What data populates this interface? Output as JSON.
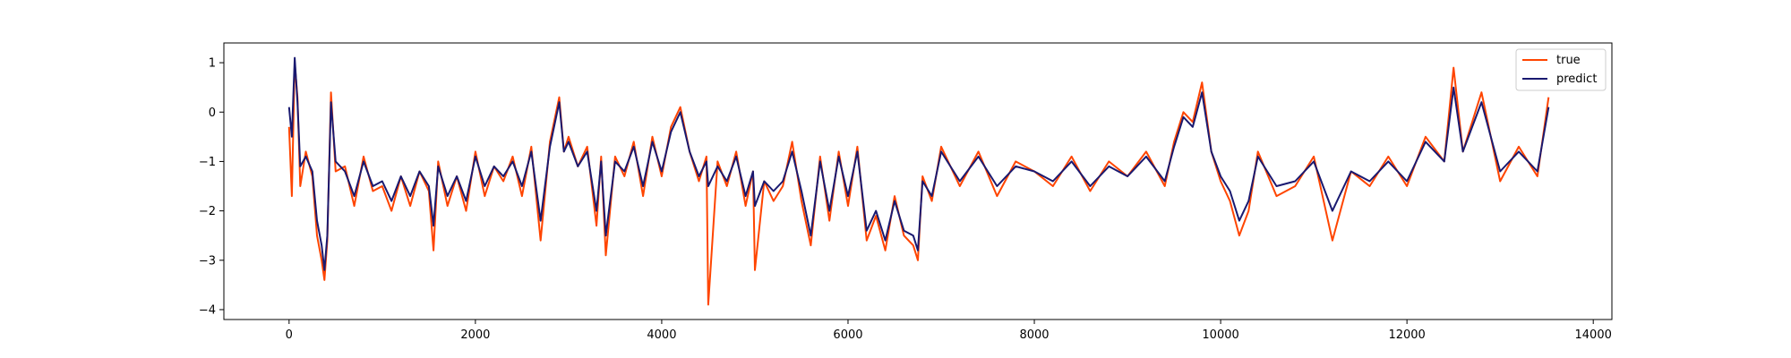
{
  "chart_data": {
    "type": "line",
    "title": "",
    "xlabel": "",
    "ylabel": "",
    "xlim": [
      -700,
      14200
    ],
    "ylim": [
      -4.2,
      1.4
    ],
    "xticks": [
      0,
      2000,
      4000,
      6000,
      8000,
      10000,
      12000,
      14000
    ],
    "yticks": [
      1,
      0,
      -1,
      -2,
      -3,
      -4
    ],
    "grid": false,
    "legend_position": "top-right",
    "series": [
      {
        "name": "true",
        "color": "#ff4500",
        "x": [
          0,
          30,
          60,
          90,
          120,
          180,
          250,
          300,
          350,
          380,
          410,
          450,
          500,
          600,
          700,
          800,
          900,
          1000,
          1100,
          1200,
          1300,
          1400,
          1500,
          1550,
          1600,
          1700,
          1800,
          1900,
          2000,
          2100,
          2200,
          2300,
          2400,
          2500,
          2600,
          2700,
          2800,
          2900,
          2950,
          3000,
          3100,
          3200,
          3300,
          3350,
          3400,
          3500,
          3600,
          3700,
          3800,
          3900,
          4000,
          4100,
          4200,
          4300,
          4400,
          4480,
          4500,
          4600,
          4700,
          4800,
          4900,
          4980,
          5000,
          5100,
          5200,
          5300,
          5400,
          5500,
          5600,
          5700,
          5800,
          5900,
          6000,
          6100,
          6200,
          6300,
          6400,
          6500,
          6600,
          6700,
          6750,
          6800,
          6900,
          7000,
          7200,
          7400,
          7600,
          7800,
          8000,
          8200,
          8400,
          8600,
          8800,
          9000,
          9200,
          9400,
          9500,
          9600,
          9700,
          9800,
          9900,
          10000,
          10100,
          10200,
          10300,
          10400,
          10600,
          10800,
          11000,
          11200,
          11400,
          11600,
          11800,
          12000,
          12200,
          12400,
          12500,
          12600,
          12800,
          13000,
          13200,
          13400,
          13520
        ],
        "y": [
          -0.3,
          -1.7,
          1.0,
          0.3,
          -1.5,
          -0.8,
          -1.3,
          -2.5,
          -3.0,
          -3.4,
          -2.6,
          0.4,
          -1.2,
          -1.1,
          -1.9,
          -0.9,
          -1.6,
          -1.5,
          -2.0,
          -1.3,
          -1.9,
          -1.2,
          -1.6,
          -2.8,
          -1.0,
          -1.9,
          -1.3,
          -2.0,
          -0.8,
          -1.7,
          -1.1,
          -1.4,
          -0.9,
          -1.7,
          -0.7,
          -2.6,
          -0.6,
          0.3,
          -0.8,
          -0.5,
          -1.1,
          -0.7,
          -2.3,
          -0.9,
          -2.9,
          -0.9,
          -1.3,
          -0.6,
          -1.7,
          -0.5,
          -1.3,
          -0.3,
          0.1,
          -0.8,
          -1.4,
          -0.9,
          -3.9,
          -1.0,
          -1.5,
          -0.8,
          -1.9,
          -1.2,
          -3.2,
          -1.4,
          -1.8,
          -1.5,
          -0.6,
          -1.8,
          -2.7,
          -0.9,
          -2.2,
          -0.8,
          -1.9,
          -0.7,
          -2.6,
          -2.1,
          -2.8,
          -1.7,
          -2.5,
          -2.7,
          -3.0,
          -1.3,
          -1.8,
          -0.7,
          -1.5,
          -0.8,
          -1.7,
          -1.0,
          -1.2,
          -1.5,
          -0.9,
          -1.6,
          -1.0,
          -1.3,
          -0.8,
          -1.5,
          -0.6,
          0.0,
          -0.2,
          0.6,
          -0.8,
          -1.4,
          -1.8,
          -2.5,
          -2.0,
          -0.8,
          -1.7,
          -1.5,
          -0.9,
          -2.6,
          -1.2,
          -1.5,
          -0.9,
          -1.5,
          -0.5,
          -1.0,
          0.9,
          -0.8,
          0.4,
          -1.4,
          -0.7,
          -1.3,
          0.3
        ]
      },
      {
        "name": "predict",
        "color": "#191970",
        "x": [
          0,
          30,
          60,
          90,
          120,
          180,
          250,
          300,
          350,
          380,
          410,
          450,
          500,
          600,
          700,
          800,
          900,
          1000,
          1100,
          1200,
          1300,
          1400,
          1500,
          1550,
          1600,
          1700,
          1800,
          1900,
          2000,
          2100,
          2200,
          2300,
          2400,
          2500,
          2600,
          2700,
          2800,
          2900,
          2950,
          3000,
          3100,
          3200,
          3300,
          3350,
          3400,
          3500,
          3600,
          3700,
          3800,
          3900,
          4000,
          4100,
          4200,
          4300,
          4400,
          4480,
          4500,
          4600,
          4700,
          4800,
          4900,
          4980,
          5000,
          5100,
          5200,
          5300,
          5400,
          5500,
          5600,
          5700,
          5800,
          5900,
          6000,
          6100,
          6200,
          6300,
          6400,
          6500,
          6600,
          6700,
          6750,
          6800,
          6900,
          7000,
          7200,
          7400,
          7600,
          7800,
          8000,
          8200,
          8400,
          8600,
          8800,
          9000,
          9200,
          9400,
          9500,
          9600,
          9700,
          9800,
          9900,
          10000,
          10100,
          10200,
          10300,
          10400,
          10600,
          10800,
          11000,
          11200,
          11400,
          11600,
          11800,
          12000,
          12200,
          12400,
          12500,
          12600,
          12800,
          13000,
          13200,
          13400,
          13520
        ],
        "y": [
          0.1,
          -0.5,
          1.1,
          0.2,
          -1.1,
          -0.9,
          -1.2,
          -2.2,
          -2.7,
          -3.2,
          -2.5,
          0.2,
          -1.0,
          -1.2,
          -1.7,
          -1.0,
          -1.5,
          -1.4,
          -1.8,
          -1.3,
          -1.7,
          -1.2,
          -1.5,
          -2.3,
          -1.1,
          -1.7,
          -1.3,
          -1.8,
          -0.9,
          -1.5,
          -1.1,
          -1.3,
          -1.0,
          -1.5,
          -0.8,
          -2.2,
          -0.7,
          0.2,
          -0.8,
          -0.6,
          -1.1,
          -0.8,
          -2.0,
          -1.0,
          -2.5,
          -1.0,
          -1.2,
          -0.7,
          -1.5,
          -0.6,
          -1.2,
          -0.4,
          0.0,
          -0.8,
          -1.3,
          -1.0,
          -1.5,
          -1.1,
          -1.4,
          -0.9,
          -1.7,
          -1.2,
          -1.9,
          -1.4,
          -1.6,
          -1.4,
          -0.8,
          -1.6,
          -2.5,
          -1.0,
          -2.0,
          -0.9,
          -1.7,
          -0.8,
          -2.4,
          -2.0,
          -2.6,
          -1.8,
          -2.4,
          -2.5,
          -2.8,
          -1.4,
          -1.7,
          -0.8,
          -1.4,
          -0.9,
          -1.5,
          -1.1,
          -1.2,
          -1.4,
          -1.0,
          -1.5,
          -1.1,
          -1.3,
          -0.9,
          -1.4,
          -0.7,
          -0.1,
          -0.3,
          0.4,
          -0.8,
          -1.3,
          -1.6,
          -2.2,
          -1.8,
          -0.9,
          -1.5,
          -1.4,
          -1.0,
          -2.0,
          -1.2,
          -1.4,
          -1.0,
          -1.4,
          -0.6,
          -1.0,
          0.5,
          -0.8,
          0.2,
          -1.2,
          -0.8,
          -1.2,
          0.1
        ]
      }
    ]
  }
}
